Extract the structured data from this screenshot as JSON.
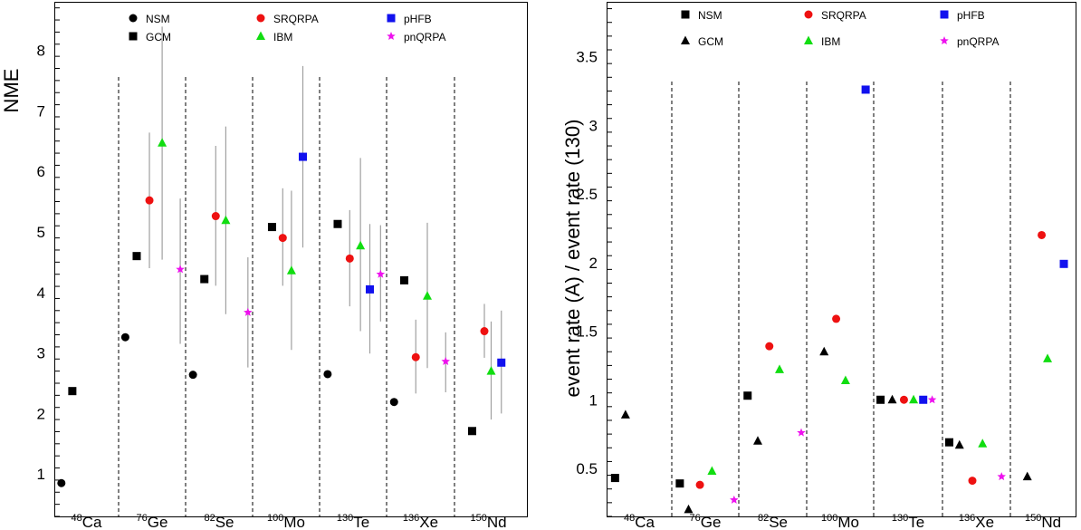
{
  "colors": {
    "NSM": "#000000",
    "GCM": "#000000",
    "SRQRPA": "#ee1111",
    "IBM": "#11dd11",
    "pHFB": "#1111ee",
    "pnQRPA": "#ee11ee",
    "error_bar": "#a0a0a0"
  },
  "chart_data": [
    {
      "type": "scatter",
      "title": "",
      "xlabel": "",
      "ylabel": "NME",
      "ylim": [
        0.3,
        8.8
      ],
      "yticks": [
        1,
        2,
        3,
        4,
        5,
        6,
        7,
        8
      ],
      "grid": false,
      "legend_position": "top",
      "categories": [
        {
          "mass": "48",
          "element": "Ca"
        },
        {
          "mass": "76",
          "element": "Ge"
        },
        {
          "mass": "82",
          "element": "Se"
        },
        {
          "mass": "100",
          "element": "Mo"
        },
        {
          "mass": "130",
          "element": "Te"
        },
        {
          "mass": "136",
          "element": "Xe"
        },
        {
          "mass": "150",
          "element": "Nd"
        }
      ],
      "series": [
        {
          "name": "NSM",
          "marker": "circle",
          "values": [
            0.85,
            3.26,
            2.64,
            null,
            2.65,
            2.19,
            null
          ],
          "errors": [
            null,
            null,
            null,
            null,
            null,
            null,
            null
          ]
        },
        {
          "name": "GCM",
          "marker": "square",
          "values": [
            2.37,
            4.6,
            4.22,
            5.08,
            5.13,
            4.2,
            1.71
          ],
          "errors": [
            null,
            null,
            null,
            null,
            null,
            null,
            null
          ]
        },
        {
          "name": "SRQRPA",
          "marker": "circle",
          "values": [
            null,
            5.52,
            5.26,
            4.9,
            4.56,
            2.93,
            3.36
          ],
          "errors": [
            null,
            [
              4.4,
              6.64
            ],
            [
              4.11,
              6.42
            ],
            [
              4.11,
              5.72
            ],
            [
              3.77,
              5.36
            ],
            [
              2.33,
              3.55
            ],
            [
              2.92,
              3.81
            ]
          ]
        },
        {
          "name": "IBM",
          "marker": "triangle",
          "values": [
            null,
            6.47,
            5.19,
            4.36,
            4.77,
            3.94,
            2.7
          ],
          "errors": [
            null,
            [
              4.54,
              8.39
            ],
            [
              3.64,
              6.74
            ],
            [
              3.05,
              5.68
            ],
            [
              3.36,
              6.22
            ],
            [
              2.75,
              5.15
            ],
            [
              1.9,
              3.52
            ]
          ]
        },
        {
          "name": "pHFB",
          "marker": "square",
          "values": [
            null,
            null,
            null,
            6.24,
            4.05,
            null,
            2.84
          ],
          "errors": [
            null,
            null,
            null,
            [
              4.74,
              7.74
            ],
            [
              2.99,
              5.13
            ],
            null,
            [
              2.0,
              3.7
            ]
          ]
        },
        {
          "name": "pnQRPA",
          "marker": "star",
          "values": [
            null,
            4.38,
            3.67,
            null,
            4.3,
            2.86,
            null
          ],
          "errors": [
            null,
            [
              3.15,
              5.55
            ],
            [
              2.76,
              4.58
            ],
            null,
            [
              3.52,
              5.11
            ],
            [
              2.35,
              3.34
            ],
            null
          ]
        }
      ]
    },
    {
      "type": "scatter",
      "title": "",
      "xlabel": "",
      "ylabel": "event rate (A) / event rate (130)",
      "ylim": [
        0.15,
        3.9
      ],
      "yticks": [
        0.5,
        1,
        1.5,
        2,
        2.5,
        3,
        3.5
      ],
      "grid": false,
      "legend_position": "top",
      "categories": [
        {
          "mass": "48",
          "element": "Ca"
        },
        {
          "mass": "76",
          "element": "Ge"
        },
        {
          "mass": "82",
          "element": "Se"
        },
        {
          "mass": "100",
          "element": "Mo"
        },
        {
          "mass": "130",
          "element": "Te"
        },
        {
          "mass": "136",
          "element": "Xe"
        },
        {
          "mass": "150",
          "element": "Nd"
        }
      ],
      "series": [
        {
          "name": "NSM",
          "marker": "square",
          "values": [
            0.43,
            0.39,
            1.03,
            null,
            1.0,
            0.69,
            null
          ]
        },
        {
          "name": "GCM",
          "marker": "triangle",
          "values": [
            0.89,
            0.2,
            0.7,
            1.35,
            1.0,
            0.67,
            0.44
          ]
        },
        {
          "name": "SRQRPA",
          "marker": "circle",
          "values": [
            null,
            0.38,
            1.39,
            1.59,
            1.0,
            0.41,
            2.2
          ]
        },
        {
          "name": "IBM",
          "marker": "triangle",
          "values": [
            null,
            0.48,
            1.22,
            1.14,
            1.0,
            0.68,
            1.3
          ]
        },
        {
          "name": "pHFB",
          "marker": "square",
          "values": [
            null,
            null,
            null,
            3.26,
            1.0,
            null,
            1.99
          ]
        },
        {
          "name": "pnQRPA",
          "marker": "star",
          "values": [
            null,
            0.27,
            0.76,
            null,
            1.0,
            0.44,
            null
          ]
        }
      ]
    }
  ]
}
